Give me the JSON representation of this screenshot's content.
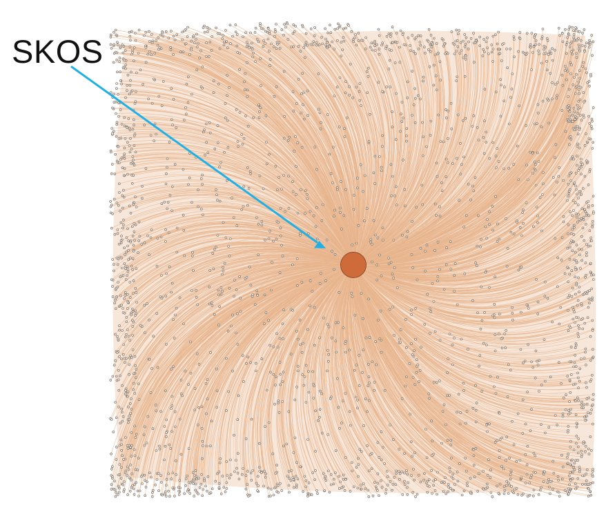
{
  "callout": {
    "label": "SKOS"
  },
  "graph": {
    "type": "radial-network",
    "hub_node": "SKOS",
    "colors": {
      "edge": "#e7b48c",
      "edge_highlight": "#f3d3b8",
      "leaf_node_fill": "#f7eadf",
      "leaf_node_stroke": "#6b655f",
      "hub_node_fill": "#cf6a3a",
      "hub_node_stroke": "#8a4a2c",
      "arrow": "#1fb0e6",
      "background": "#ffffff"
    }
  }
}
